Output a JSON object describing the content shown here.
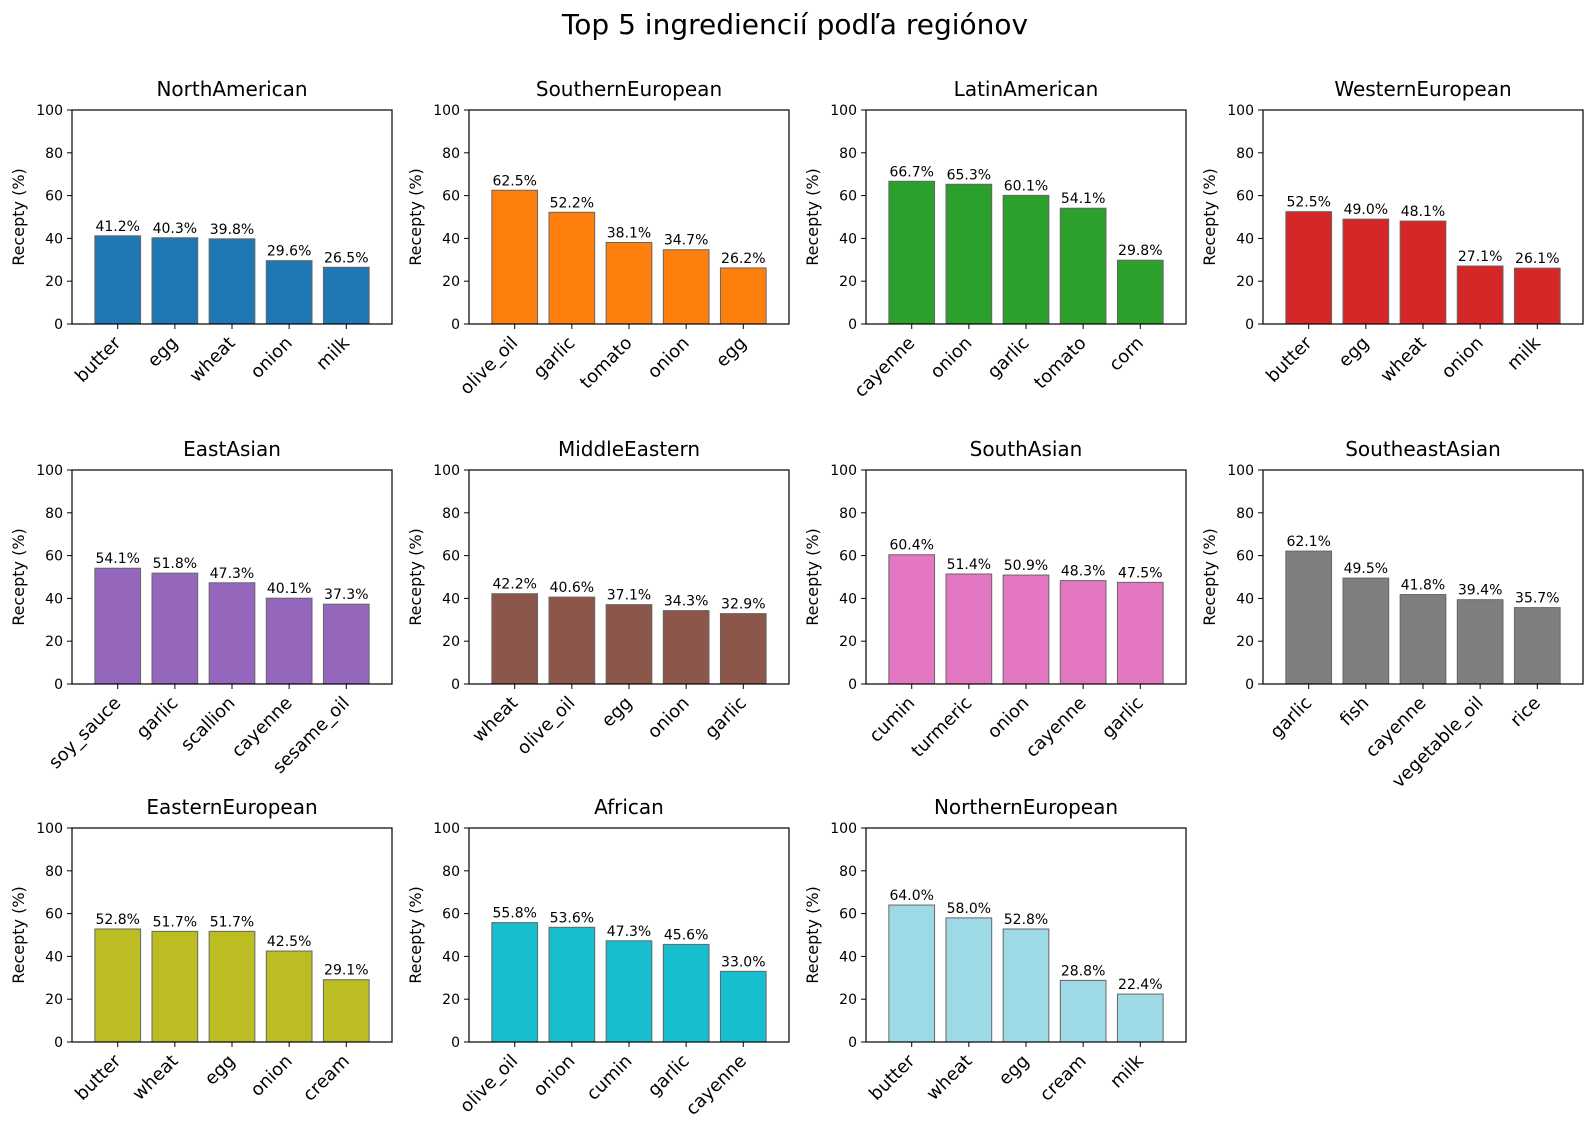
{
  "title": "Top 5 ingrediencií podľa regiónov",
  "chart_data": [
    {
      "type": "bar",
      "title": "NorthAmerican",
      "ylabel": "Recepty (%)",
      "ylim": [
        0,
        100
      ],
      "yticks": [
        "0",
        "20",
        "40",
        "60",
        "80",
        "100"
      ],
      "color": "#1f77b4",
      "categories": [
        "butter",
        "egg",
        "wheat",
        "onion",
        "milk"
      ],
      "values": [
        41.2,
        40.3,
        39.8,
        29.6,
        26.5
      ],
      "labels": [
        "41.2%",
        "40.3%",
        "39.8%",
        "29.6%",
        "26.5%"
      ]
    },
    {
      "type": "bar",
      "title": "SouthernEuropean",
      "ylabel": "Recepty (%)",
      "ylim": [
        0,
        100
      ],
      "yticks": [
        "0",
        "20",
        "40",
        "60",
        "80",
        "100"
      ],
      "color": "#ff7f0e",
      "categories": [
        "olive_oil",
        "garlic",
        "tomato",
        "onion",
        "egg"
      ],
      "values": [
        62.5,
        52.2,
        38.1,
        34.7,
        26.2
      ],
      "labels": [
        "62.5%",
        "52.2%",
        "38.1%",
        "34.7%",
        "26.2%"
      ]
    },
    {
      "type": "bar",
      "title": "LatinAmerican",
      "ylabel": "Recepty (%)",
      "ylim": [
        0,
        100
      ],
      "yticks": [
        "0",
        "20",
        "40",
        "60",
        "80",
        "100"
      ],
      "color": "#2ca02c",
      "categories": [
        "cayenne",
        "onion",
        "garlic",
        "tomato",
        "corn"
      ],
      "values": [
        66.7,
        65.3,
        60.1,
        54.1,
        29.8
      ],
      "labels": [
        "66.7%",
        "65.3%",
        "60.1%",
        "54.1%",
        "29.8%"
      ]
    },
    {
      "type": "bar",
      "title": "WesternEuropean",
      "ylabel": "Recepty (%)",
      "ylim": [
        0,
        100
      ],
      "yticks": [
        "0",
        "20",
        "40",
        "60",
        "80",
        "100"
      ],
      "color": "#d62728",
      "categories": [
        "butter",
        "egg",
        "wheat",
        "onion",
        "milk"
      ],
      "values": [
        52.5,
        49.0,
        48.1,
        27.1,
        26.1
      ],
      "labels": [
        "52.5%",
        "49.0%",
        "48.1%",
        "27.1%",
        "26.1%"
      ]
    },
    {
      "type": "bar",
      "title": "EastAsian",
      "ylabel": "Recepty (%)",
      "ylim": [
        0,
        100
      ],
      "yticks": [
        "0",
        "20",
        "40",
        "60",
        "80",
        "100"
      ],
      "color": "#9467bd",
      "categories": [
        "soy_sauce",
        "garlic",
        "scallion",
        "cayenne",
        "sesame_oil"
      ],
      "values": [
        54.1,
        51.8,
        47.3,
        40.1,
        37.3
      ],
      "labels": [
        "54.1%",
        "51.8%",
        "47.3%",
        "40.1%",
        "37.3%"
      ]
    },
    {
      "type": "bar",
      "title": "MiddleEastern",
      "ylabel": "Recepty (%)",
      "ylim": [
        0,
        100
      ],
      "yticks": [
        "0",
        "20",
        "40",
        "60",
        "80",
        "100"
      ],
      "color": "#8c564b",
      "categories": [
        "wheat",
        "olive_oil",
        "egg",
        "onion",
        "garlic"
      ],
      "values": [
        42.2,
        40.6,
        37.1,
        34.3,
        32.9
      ],
      "labels": [
        "42.2%",
        "40.6%",
        "37.1%",
        "34.3%",
        "32.9%"
      ]
    },
    {
      "type": "bar",
      "title": "SouthAsian",
      "ylabel": "Recepty (%)",
      "ylim": [
        0,
        100
      ],
      "yticks": [
        "0",
        "20",
        "40",
        "60",
        "80",
        "100"
      ],
      "color": "#e377c2",
      "categories": [
        "cumin",
        "turmeric",
        "onion",
        "cayenne",
        "garlic"
      ],
      "values": [
        60.4,
        51.4,
        50.9,
        48.3,
        47.5
      ],
      "labels": [
        "60.4%",
        "51.4%",
        "50.9%",
        "48.3%",
        "47.5%"
      ]
    },
    {
      "type": "bar",
      "title": "SoutheastAsian",
      "ylabel": "Recepty (%)",
      "ylim": [
        0,
        100
      ],
      "yticks": [
        "0",
        "20",
        "40",
        "60",
        "80",
        "100"
      ],
      "color": "#7f7f7f",
      "categories": [
        "garlic",
        "fish",
        "cayenne",
        "vegetable_oil",
        "rice"
      ],
      "values": [
        62.1,
        49.5,
        41.8,
        39.4,
        35.7
      ],
      "labels": [
        "62.1%",
        "49.5%",
        "41.8%",
        "39.4%",
        "35.7%"
      ]
    },
    {
      "type": "bar",
      "title": "EasternEuropean",
      "ylabel": "Recepty (%)",
      "ylim": [
        0,
        100
      ],
      "yticks": [
        "0",
        "20",
        "40",
        "60",
        "80",
        "100"
      ],
      "color": "#bcbd22",
      "categories": [
        "butter",
        "wheat",
        "egg",
        "onion",
        "cream"
      ],
      "values": [
        52.8,
        51.7,
        51.7,
        42.5,
        29.1
      ],
      "labels": [
        "52.8%",
        "51.7%",
        "51.7%",
        "42.5%",
        "29.1%"
      ]
    },
    {
      "type": "bar",
      "title": "African",
      "ylabel": "Recepty (%)",
      "ylim": [
        0,
        100
      ],
      "yticks": [
        "0",
        "20",
        "40",
        "60",
        "80",
        "100"
      ],
      "color": "#17becf",
      "categories": [
        "olive_oil",
        "onion",
        "cumin",
        "garlic",
        "cayenne"
      ],
      "values": [
        55.8,
        53.6,
        47.3,
        45.6,
        33.0
      ],
      "labels": [
        "55.8%",
        "53.6%",
        "47.3%",
        "45.6%",
        "33.0%"
      ]
    },
    {
      "type": "bar",
      "title": "NorthernEuropean",
      "ylabel": "Recepty (%)",
      "ylim": [
        0,
        100
      ],
      "yticks": [
        "0",
        "20",
        "40",
        "60",
        "80",
        "100"
      ],
      "color": "#9edae5",
      "categories": [
        "butter",
        "wheat",
        "egg",
        "cream",
        "milk"
      ],
      "values": [
        64.0,
        58.0,
        52.8,
        28.8,
        22.4
      ],
      "labels": [
        "64.0%",
        "58.0%",
        "52.8%",
        "28.8%",
        "22.4%"
      ]
    }
  ]
}
